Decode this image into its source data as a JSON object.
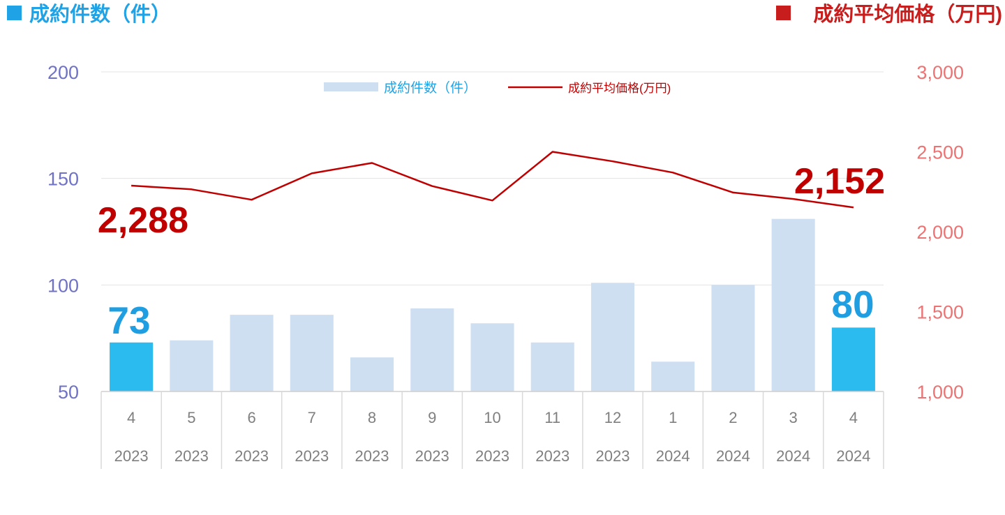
{
  "chart_data": {
    "type": "bar",
    "left_title": "成約件数（件）",
    "right_title": "成約平均価格（万円)",
    "legend": {
      "bar_label": "成約件数（件）",
      "line_label": "成約平均価格(万円)"
    },
    "categories": [
      "4",
      "5",
      "6",
      "7",
      "8",
      "9",
      "10",
      "11",
      "12",
      "1",
      "2",
      "3",
      "4"
    ],
    "years": [
      "2023",
      "2023",
      "2023",
      "2023",
      "2023",
      "2023",
      "2023",
      "2023",
      "2023",
      "2024",
      "2024",
      "2024",
      "2024"
    ],
    "left_axis": {
      "ylim": [
        50,
        200
      ],
      "ticks": [
        "50",
        "100",
        "150",
        "200"
      ]
    },
    "right_axis": {
      "ylim": [
        1000,
        3000
      ],
      "ticks": [
        "1,000",
        "1,500",
        "2,000",
        "2,500",
        "3,000"
      ]
    },
    "series": [
      {
        "type": "bar",
        "axis": "left",
        "values": [
          73,
          74,
          86,
          86,
          66,
          89,
          82,
          73,
          101,
          64,
          100,
          131,
          80
        ]
      },
      {
        "type": "line",
        "axis": "right",
        "values": [
          2288,
          2265,
          2200,
          2365,
          2430,
          2285,
          2195,
          2500,
          2440,
          2370,
          2245,
          2205,
          2152
        ]
      }
    ],
    "highlight_indices": [
      0,
      12
    ],
    "annotations": {
      "line_start": "2,288",
      "line_end": "2,152",
      "bar_start": "73",
      "bar_end": "80"
    },
    "grid": true,
    "legend_position": "top-center",
    "colors": {
      "bar": "#cfdff2",
      "bar_highlight": "#2bbbef",
      "line": "#c00000",
      "left_axis_text": "#6f72c6",
      "right_axis_text": "#ec7373",
      "left_title": "#1fa3e6",
      "right_title": "#c81d1d",
      "label_blue": "#1f9fe2",
      "label_red": "#c00000",
      "category_text": "#7f7f7f"
    }
  }
}
